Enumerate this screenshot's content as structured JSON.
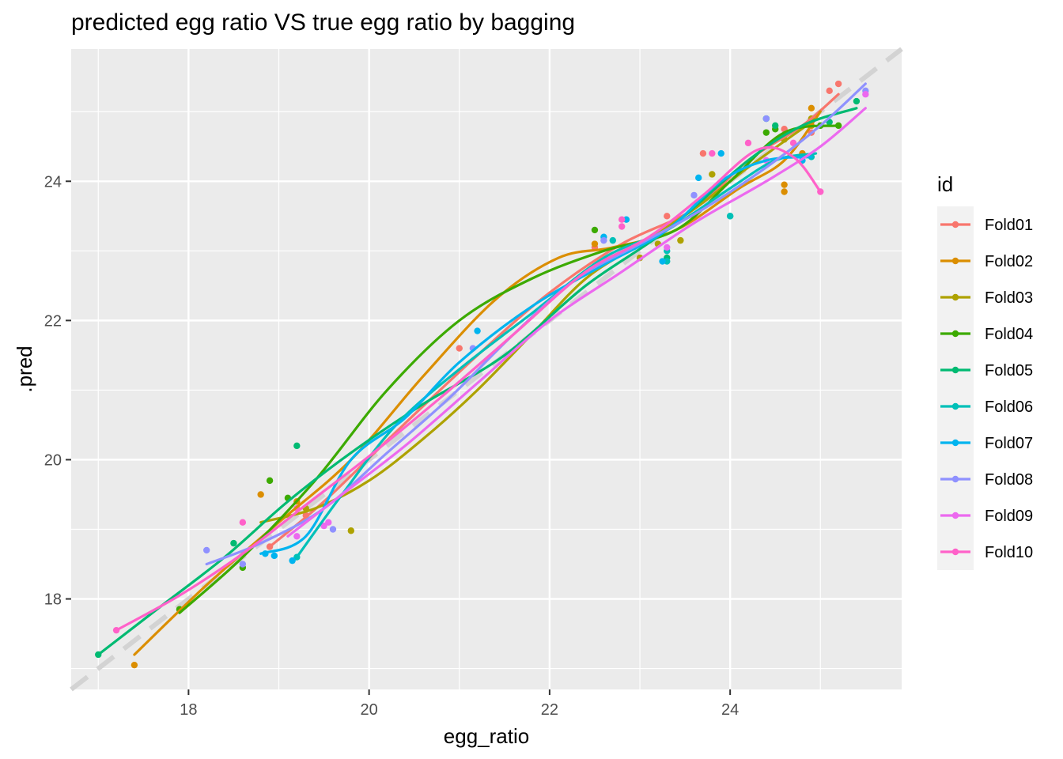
{
  "title": "predicted egg ratio VS true egg ratio by bagging",
  "chart_data": {
    "type": "scatter",
    "title": "predicted egg ratio VS true egg ratio by bagging",
    "xlabel": "egg_ratio",
    "ylabel": ".pred",
    "xlim": [
      16.7,
      25.9
    ],
    "ylim": [
      16.7,
      25.9
    ],
    "xticks": [
      18,
      20,
      22,
      24
    ],
    "yticks": [
      18,
      20,
      22,
      24
    ],
    "grid": true,
    "reference_line": {
      "slope": 1,
      "intercept": 0,
      "style": "dashed",
      "color": "#d3d3d3"
    },
    "legend": {
      "title": "id",
      "position": "right"
    },
    "series": [
      {
        "name": "Fold01",
        "color": "#F8766D",
        "points": [
          [
            18.9,
            18.75
          ],
          [
            19.3,
            19.2
          ],
          [
            21.0,
            21.6
          ],
          [
            22.5,
            23.05
          ],
          [
            23.3,
            23.5
          ],
          [
            23.7,
            24.4
          ],
          [
            24.6,
            24.75
          ],
          [
            24.9,
            24.7
          ],
          [
            25.2,
            25.4
          ],
          [
            25.1,
            25.3
          ]
        ],
        "smooth": [
          [
            18.9,
            18.75
          ],
          [
            19.5,
            19.4
          ],
          [
            20.3,
            20.4
          ],
          [
            21.2,
            21.5
          ],
          [
            22.0,
            22.4
          ],
          [
            22.8,
            23.1
          ],
          [
            23.6,
            23.6
          ],
          [
            24.2,
            24.3
          ],
          [
            24.8,
            24.8
          ],
          [
            25.2,
            25.25
          ]
        ]
      },
      {
        "name": "Fold02",
        "color": "#DB8E00",
        "points": [
          [
            17.4,
            17.05
          ],
          [
            18.8,
            19.5
          ],
          [
            19.2,
            19.4
          ],
          [
            22.5,
            23.1
          ],
          [
            24.6,
            23.95
          ],
          [
            24.6,
            23.85
          ],
          [
            24.9,
            25.05
          ],
          [
            24.8,
            24.4
          ],
          [
            24.9,
            24.8
          ]
        ],
        "smooth": [
          [
            17.4,
            17.2
          ],
          [
            18.2,
            18.2
          ],
          [
            19.0,
            19.1
          ],
          [
            19.8,
            20.0
          ],
          [
            20.6,
            21.2
          ],
          [
            21.4,
            22.3
          ],
          [
            22.1,
            22.9
          ],
          [
            22.7,
            23.05
          ],
          [
            23.4,
            23.3
          ],
          [
            24.1,
            23.9
          ],
          [
            24.6,
            24.3
          ],
          [
            25.0,
            25.0
          ]
        ]
      },
      {
        "name": "Fold03",
        "color": "#AEA200",
        "points": [
          [
            19.8,
            18.98
          ],
          [
            19.3,
            19.3
          ],
          [
            23.0,
            22.9
          ],
          [
            23.2,
            23.1
          ],
          [
            23.45,
            23.15
          ],
          [
            23.8,
            24.1
          ],
          [
            24.6,
            24.6
          ],
          [
            24.9,
            24.9
          ]
        ],
        "smooth": [
          [
            18.8,
            19.1
          ],
          [
            19.4,
            19.3
          ],
          [
            20.0,
            19.7
          ],
          [
            20.6,
            20.3
          ],
          [
            21.2,
            21.0
          ],
          [
            21.8,
            21.8
          ],
          [
            22.4,
            22.6
          ],
          [
            23.0,
            23.1
          ],
          [
            23.6,
            23.6
          ],
          [
            24.2,
            24.2
          ],
          [
            24.9,
            24.85
          ]
        ]
      },
      {
        "name": "Fold04",
        "color": "#3CAA00",
        "points": [
          [
            17.9,
            17.85
          ],
          [
            18.6,
            18.45
          ],
          [
            18.9,
            19.7
          ],
          [
            19.1,
            19.45
          ],
          [
            22.5,
            23.3
          ],
          [
            24.4,
            24.7
          ],
          [
            24.5,
            24.75
          ],
          [
            25.0,
            24.8
          ],
          [
            25.2,
            24.8
          ]
        ],
        "smooth": [
          [
            17.9,
            17.8
          ],
          [
            18.6,
            18.6
          ],
          [
            19.4,
            19.7
          ],
          [
            20.2,
            21.0
          ],
          [
            21.0,
            22.0
          ],
          [
            21.8,
            22.6
          ],
          [
            22.6,
            23.0
          ],
          [
            23.4,
            23.3
          ],
          [
            24.0,
            24.0
          ],
          [
            24.6,
            24.7
          ],
          [
            25.2,
            24.8
          ]
        ]
      },
      {
        "name": "Fold05",
        "color": "#00BA72",
        "points": [
          [
            17.0,
            17.2
          ],
          [
            18.5,
            18.8
          ],
          [
            19.2,
            20.2
          ],
          [
            23.3,
            22.9
          ],
          [
            24.0,
            23.5
          ],
          [
            24.4,
            24.9
          ],
          [
            24.5,
            24.8
          ],
          [
            25.1,
            24.85
          ],
          [
            25.4,
            25.15
          ]
        ],
        "smooth": [
          [
            17.0,
            17.2
          ],
          [
            17.7,
            17.9
          ],
          [
            18.4,
            18.6
          ],
          [
            19.1,
            19.4
          ],
          [
            19.8,
            20.1
          ],
          [
            20.6,
            20.8
          ],
          [
            21.5,
            21.5
          ],
          [
            22.4,
            22.5
          ],
          [
            23.3,
            23.3
          ],
          [
            24.2,
            24.3
          ],
          [
            24.8,
            24.8
          ],
          [
            25.4,
            25.05
          ]
        ]
      },
      {
        "name": "Fold06",
        "color": "#00C0B8",
        "points": [
          [
            19.2,
            18.6
          ],
          [
            22.7,
            23.15
          ],
          [
            23.3,
            22.85
          ],
          [
            23.3,
            23.0
          ],
          [
            24.0,
            23.5
          ],
          [
            24.4,
            24.9
          ],
          [
            24.9,
            24.35
          ]
        ],
        "smooth": [
          [
            19.2,
            18.6
          ],
          [
            19.7,
            19.5
          ],
          [
            20.3,
            20.5
          ],
          [
            21.0,
            21.3
          ],
          [
            21.8,
            22.1
          ],
          [
            22.6,
            22.9
          ],
          [
            23.3,
            23.3
          ],
          [
            24.0,
            23.9
          ],
          [
            24.5,
            24.3
          ],
          [
            24.95,
            24.4
          ]
        ]
      },
      {
        "name": "Fold07",
        "color": "#00B4EF",
        "points": [
          [
            18.85,
            18.65
          ],
          [
            18.95,
            18.62
          ],
          [
            19.15,
            18.55
          ],
          [
            21.2,
            21.85
          ],
          [
            22.6,
            23.2
          ],
          [
            22.85,
            23.45
          ],
          [
            23.25,
            22.85
          ],
          [
            23.65,
            24.05
          ],
          [
            23.9,
            24.4
          ],
          [
            24.8,
            24.3
          ]
        ],
        "smooth": [
          [
            18.8,
            18.65
          ],
          [
            19.3,
            18.9
          ],
          [
            19.8,
            20.0
          ],
          [
            20.4,
            20.6
          ],
          [
            21.0,
            21.4
          ],
          [
            21.8,
            22.2
          ],
          [
            22.6,
            22.8
          ],
          [
            23.3,
            23.3
          ],
          [
            23.9,
            24.0
          ],
          [
            24.4,
            24.3
          ],
          [
            24.9,
            24.35
          ]
        ]
      },
      {
        "name": "Fold08",
        "color": "#8F91FF",
        "points": [
          [
            18.2,
            18.7
          ],
          [
            18.6,
            18.5
          ],
          [
            19.6,
            19.0
          ],
          [
            21.15,
            21.6
          ],
          [
            22.6,
            23.15
          ],
          [
            23.6,
            23.8
          ],
          [
            24.4,
            24.9
          ],
          [
            25.5,
            25.3
          ]
        ],
        "smooth": [
          [
            18.2,
            18.5
          ],
          [
            18.8,
            18.8
          ],
          [
            19.5,
            19.3
          ],
          [
            20.2,
            20.1
          ],
          [
            20.9,
            20.9
          ],
          [
            21.6,
            21.8
          ],
          [
            22.3,
            22.6
          ],
          [
            23.0,
            23.1
          ],
          [
            23.7,
            23.6
          ],
          [
            24.4,
            24.2
          ],
          [
            25.0,
            24.8
          ],
          [
            25.5,
            25.4
          ]
        ]
      },
      {
        "name": "Fold09",
        "color": "#EC69EF",
        "points": [
          [
            19.2,
            18.9
          ],
          [
            19.5,
            19.05
          ],
          [
            19.55,
            19.1
          ],
          [
            23.3,
            23.05
          ],
          [
            24.4,
            24.3
          ],
          [
            25.5,
            25.25
          ]
        ],
        "smooth": [
          [
            19.1,
            18.9
          ],
          [
            19.7,
            19.5
          ],
          [
            20.4,
            20.2
          ],
          [
            21.2,
            21.1
          ],
          [
            22.0,
            22.0
          ],
          [
            22.8,
            22.7
          ],
          [
            23.6,
            23.4
          ],
          [
            24.4,
            24.0
          ],
          [
            25.0,
            24.5
          ],
          [
            25.5,
            25.05
          ]
        ]
      },
      {
        "name": "Fold10",
        "color": "#FF61C9",
        "points": [
          [
            17.2,
            17.55
          ],
          [
            18.6,
            19.1
          ],
          [
            19.2,
            19.3
          ],
          [
            22.8,
            23.45
          ],
          [
            22.8,
            23.35
          ],
          [
            23.8,
            24.4
          ],
          [
            24.2,
            24.55
          ],
          [
            24.7,
            24.55
          ],
          [
            25.0,
            23.85
          ]
        ],
        "smooth": [
          [
            17.2,
            17.55
          ],
          [
            17.9,
            18.05
          ],
          [
            18.6,
            18.65
          ],
          [
            19.3,
            19.35
          ],
          [
            20.0,
            20.05
          ],
          [
            20.8,
            20.9
          ],
          [
            21.6,
            21.8
          ],
          [
            22.4,
            22.7
          ],
          [
            23.1,
            23.2
          ],
          [
            23.7,
            23.8
          ],
          [
            24.3,
            24.45
          ],
          [
            24.7,
            24.35
          ],
          [
            25.0,
            23.85
          ]
        ]
      }
    ]
  }
}
